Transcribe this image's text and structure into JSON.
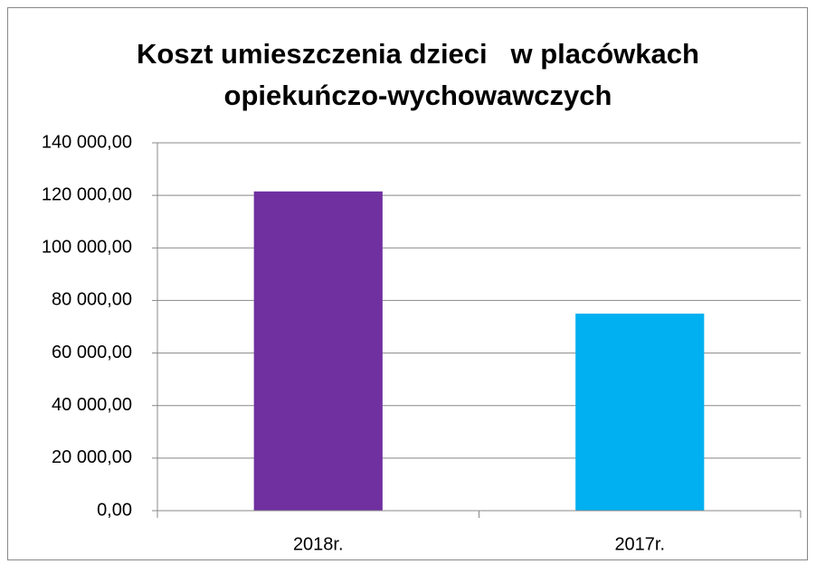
{
  "chart_data": {
    "type": "bar",
    "title": [
      "Koszt umieszczenia dzieci   w placówkach",
      "opiekuńczo-wychowawczych"
    ],
    "categories": [
      "2018r.",
      "2017r."
    ],
    "values": [
      121500,
      75000
    ],
    "colors": [
      "#7030a0",
      "#00b0f0"
    ],
    "ylim": [
      0,
      140000
    ],
    "yticks": [
      {
        "value": 0,
        "label": "0,00"
      },
      {
        "value": 20000,
        "label": "20 000,00"
      },
      {
        "value": 40000,
        "label": "40 000,00"
      },
      {
        "value": 60000,
        "label": "60 000,00"
      },
      {
        "value": 80000,
        "label": "80 000,00"
      },
      {
        "value": 100000,
        "label": "100 000,00"
      },
      {
        "value": 120000,
        "label": "120 000,00"
      },
      {
        "value": 140000,
        "label": "140 000,00"
      }
    ],
    "grid": true
  }
}
